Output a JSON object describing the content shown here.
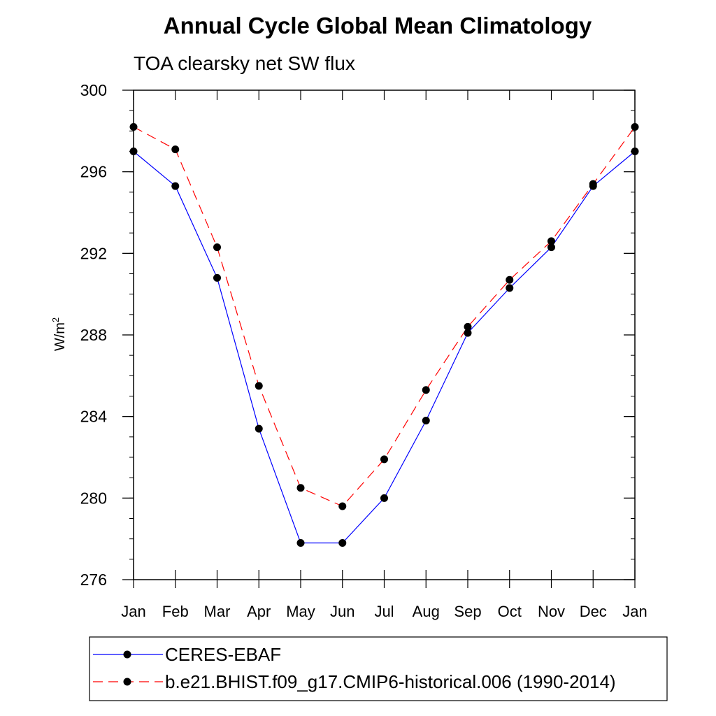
{
  "chart_data": {
    "type": "line",
    "title": "Annual Cycle Global Mean Climatology",
    "subtitle": "TOA clearsky net SW flux",
    "ylabel": "W/m",
    "ylabel_superscript": "2",
    "xlabel": "",
    "categories": [
      "Jan",
      "Feb",
      "Mar",
      "Apr",
      "May",
      "Jun",
      "Jul",
      "Aug",
      "Sep",
      "Oct",
      "Nov",
      "Dec",
      "Jan"
    ],
    "ylim": [
      276,
      300
    ],
    "yticks": [
      276,
      280,
      284,
      288,
      292,
      296,
      300
    ],
    "grid": false,
    "legend_position": "bottom",
    "series": [
      {
        "name": "CERES-EBAF",
        "color": "#0000ff",
        "dash": "solid",
        "values": [
          297.0,
          295.3,
          290.8,
          283.4,
          277.8,
          277.8,
          280.0,
          283.8,
          288.1,
          290.3,
          292.3,
          295.3,
          297.0
        ]
      },
      {
        "name": "b.e21.BHIST.f09_g17.CMIP6-historical.006 (1990-2014)",
        "color": "#ff0000",
        "dash": "dashed",
        "values": [
          298.2,
          297.1,
          292.3,
          285.5,
          280.5,
          279.6,
          281.9,
          285.3,
          288.4,
          290.7,
          292.6,
          295.4,
          298.2
        ]
      }
    ]
  }
}
